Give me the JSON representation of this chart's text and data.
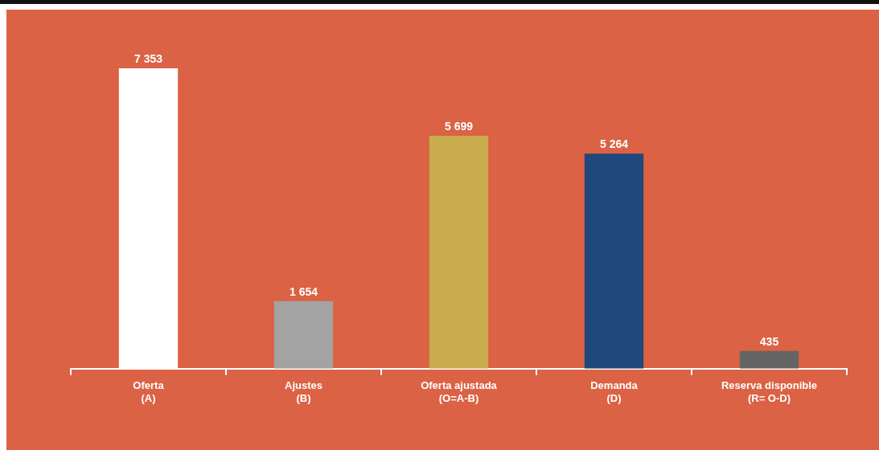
{
  "chart_data": {
    "type": "bar",
    "categories": [
      "Oferta\n(A)",
      "Ajustes\n(B)",
      "Oferta ajustada\n(O=A-B)",
      "Demanda\n(D)",
      "Reserva disponible\n(R= O-D)"
    ],
    "values": [
      7353,
      1654,
      5699,
      5264,
      435
    ],
    "colors": [
      "#ffffff",
      "#a3a3a3",
      "#c8ac4e",
      "#1f497d",
      "#656565"
    ],
    "value_labels": [
      "7 353",
      "1 654",
      "5 699",
      "5 264",
      "435"
    ],
    "grid": false,
    "legend": false,
    "tick_labels": "x"
  }
}
